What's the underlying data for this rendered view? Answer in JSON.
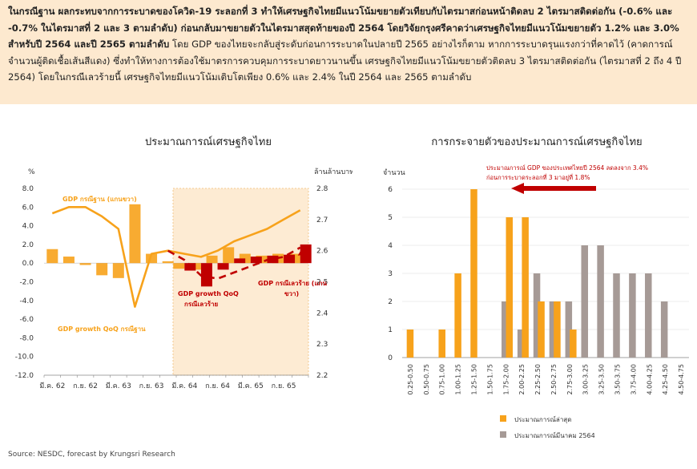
{
  "summary": {
    "bold_part": "ในกรณีฐาน ผลกระทบจากการระบาดของโควิด-19 ระลอกที่ 3 ทำให้เศรษฐกิจไทยมีแนวโน้มขยายตัวเทียบกับไตรมาสก่อนหน้าติดลบ 2 ไตรมาสติดต่อกัน (-0.6% และ -0.7% ในไตรมาสที่ 2 และ 3 ตามลำดับ) ก่อนกลับมาขยายตัวในไตรมาสสุดท้ายของปี 2564 โดยวิจัยกรุงศรีคาดว่าเศรษฐกิจไทยมีแนวโน้มขยายตัว 1.2% และ 3.0% สำหรับปี 2564 และปี 2565 ตามลำดับ",
    "normal_part": " โดย GDP ของไทยจะกลับสู่ระดับก่อนการระบาดในปลายปี 2565 อย่างไรก็ตาม หากการระบาดรุนแรงกว่าที่คาดไว้ (คาดการณ์จำนวนผู้ติดเชื้อเส้นสีแดง) ซึ่งทำให้ทางการต้องใช้มาตรการควบคุมการระบาดยาวนานขึ้น เศรษฐกิจไทยมีแนวโน้มขยายตัวติดลบ 3 ไตรมาสติดต่อกัน (ไตรมาสที่ 2 ถึง 4 ปี 2564) โดยในกรณีเลวร้ายนี้ เศรษฐกิจไทยมีแนวโน้มเติบโตเพียง 0.6% และ 2.4% ในปี 2564 และ 2565 ตามลำดับ"
  },
  "colors": {
    "orange": "#f7a21b",
    "dark_red": "#c00000",
    "grey": "#a69a96",
    "forecast_shade": "#fdebd3",
    "summary_bg": "#fde9cf"
  },
  "source": "Source: NESDC, forecast by Krungsri Research",
  "chart_data": [
    {
      "type": "bar",
      "title": "ประมาณการณ์เศรษฐกิจไทย",
      "left_axis_unit": "%",
      "right_axis_unit": "ล้านล้านบาท",
      "ylim": [
        -12,
        8
      ],
      "y_ticks": [
        "8.0",
        "6.0",
        "4.0",
        "2.0",
        "0.0",
        "-2.0",
        "-4.0",
        "-6.0",
        "-8.0",
        "-10.0",
        "-12.0"
      ],
      "y2lim": [
        2.2,
        2.8
      ],
      "y2_ticks": [
        "2.8",
        "2.7",
        "2.6",
        "2.5",
        "2.4",
        "2.3",
        "2.2"
      ],
      "x_tick_labels": [
        "มี.ค. 62",
        "ก.ย. 62",
        "มี.ค. 63",
        "ก.ย. 63",
        "มี.ค. 64",
        "ก.ย. 64",
        "มี.ค. 65",
        "ก.ย. 65"
      ],
      "forecast_shaded": true,
      "series": [
        {
          "name": "GDP growth QoQ กรณีฐาน",
          "kind": "bar",
          "axis": "left",
          "values": [
            1.5,
            0.7,
            -0.2,
            -1.3,
            -1.6,
            6.3,
            1.0,
            0.2,
            -0.6,
            -0.7,
            0.8,
            1.7,
            1.0,
            0.8,
            1.0,
            1.0
          ]
        },
        {
          "name": "GDP growth QoQ กรณีเลวร้าย",
          "kind": "bar",
          "axis": "left",
          "values": [
            null,
            null,
            null,
            null,
            null,
            null,
            null,
            null,
            -0.8,
            -2.5,
            -0.7,
            0.5,
            0.7,
            0.8,
            0.9,
            2.0
          ]
        },
        {
          "name": "GDP กรณีฐาน (แกนขวา)",
          "kind": "line",
          "axis": "right",
          "values": [
            2.72,
            2.74,
            2.74,
            2.71,
            2.67,
            2.42,
            2.59,
            2.6,
            2.59,
            2.58,
            2.6,
            2.63,
            2.65,
            2.67,
            2.7,
            2.73
          ]
        },
        {
          "name": "GDP กรณีเลวร้าย (แกนขวา)",
          "kind": "line",
          "axis": "right",
          "dashed": true,
          "values": [
            null,
            null,
            null,
            null,
            null,
            null,
            null,
            2.6,
            2.57,
            2.52,
            2.51,
            2.53,
            2.55,
            2.57,
            2.58,
            2.61
          ]
        }
      ],
      "annotations": {
        "base_gdp": "GDP กรณีฐาน (แกนขวา)",
        "base_growth": "GDP growth QoQ กรณีฐาน",
        "bad_growth_line1": "GDP growth QoQ",
        "bad_growth_line2": "กรณีเลวร้าย",
        "bad_gdp_line1": "GDP กรณีเลวร้าย (แกน",
        "bad_gdp_line2": "ขวา)"
      }
    },
    {
      "type": "bar",
      "title": "การกระจายตัวของประมาณการณ์เศรษฐกิจไทย",
      "ylabel": "จำนวน",
      "ylim": [
        0,
        6
      ],
      "y_ticks": [
        "0",
        "1",
        "2",
        "3",
        "4",
        "5",
        "6"
      ],
      "categories": [
        "0.25-0.50",
        "0.50-0.75",
        "0.75-1.00",
        "1.00-1.25",
        "1.25-1.50",
        "1.50-1.75",
        "1.75-2.00",
        "2.00-2.25",
        "2.25-2.50",
        "2.50-2.75",
        "2.75-3.00",
        "3.00-3.25",
        "3.25-3.50",
        "3.50-3.75",
        "3.75-4.00",
        "4.00-4.25",
        "4.25-4.50",
        "4.50-4.75"
      ],
      "series": [
        {
          "name": "ประมาณการณ์ล่าสุด",
          "values": [
            1,
            0,
            1,
            3,
            6,
            0,
            5,
            5,
            2,
            2,
            1,
            0,
            0,
            0,
            0,
            0,
            0,
            0
          ]
        },
        {
          "name": "ประมาณการณ์มีนาคม 2564",
          "values": [
            0,
            0,
            0,
            0,
            0,
            0,
            2,
            1,
            3,
            2,
            2,
            4,
            4,
            3,
            3,
            3,
            2,
            0
          ]
        }
      ],
      "annotation": {
        "line1": "ประมาณการณ์ GDP ของประเทศไทยปี 2564 ลดลงจาก 3.4%",
        "line2": "ก่อนการระบาดระลอกที่ 3 มาอยู่ที่ 1.8%"
      },
      "legend_position": "bottom"
    }
  ]
}
